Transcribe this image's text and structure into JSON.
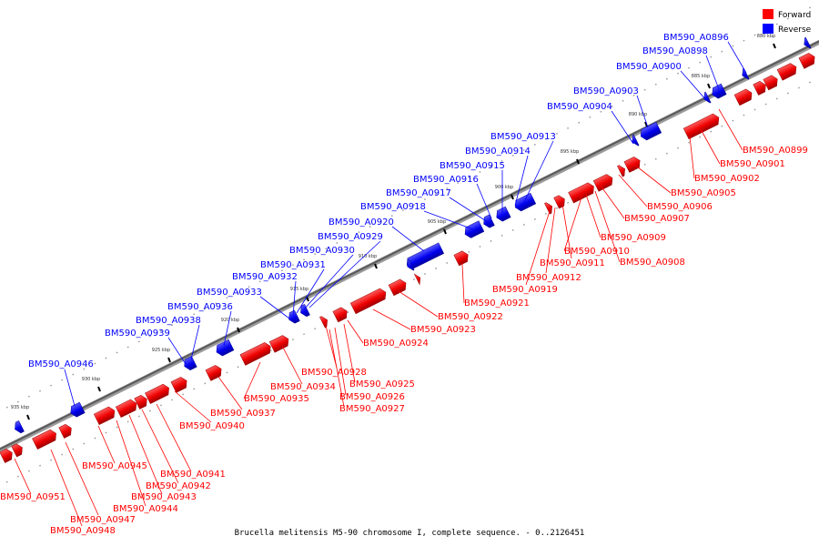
{
  "legend": {
    "forward_label": "Forward",
    "reverse_label": "Reverse",
    "forward_color": "#ff0000",
    "reverse_color": "#0000ff"
  },
  "caption": "Brucella melitensis M5-90 chromosome I, complete sequence. - 0..2126451",
  "ticks": [
    "880 kbp",
    "885 kbp",
    "890 kbp",
    "895 kbp",
    "900 kbp",
    "905 kbp",
    "910 kbp",
    "915 kbp",
    "920 kbp",
    "925 kbp",
    "930 kbp",
    "935 kbp"
  ],
  "reverse_genes": [
    "BM590_A0896",
    "BM590_A0898",
    "BM590_A0900",
    "BM590_A0903",
    "BM590_A0904",
    "BM590_A0913",
    "BM590_A0914",
    "BM590_A0915",
    "BM590_A0916",
    "BM590_A0917",
    "BM590_A0918",
    "BM590_A0920",
    "BM590_A0929",
    "BM590_A0930",
    "BM590_A0931",
    "BM590_A0932",
    "BM590_A0933",
    "BM590_A0936",
    "BM590_A0938",
    "BM590_A0939",
    "BM590_A0946"
  ],
  "forward_genes": [
    "BM590_A0899",
    "BM590_A0901",
    "BM590_A0902",
    "BM590_A0905",
    "BM590_A0906",
    "BM590_A0907",
    "BM590_A0909",
    "BM590_A0910",
    "BM590_A0908",
    "BM590_A0911",
    "BM590_A0912",
    "BM590_A0919",
    "BM590_A0921",
    "BM590_A0922",
    "BM590_A0923",
    "BM590_A0924",
    "BM590_A0925",
    "BM590_A0926",
    "BM590_A0927",
    "BM590_A0928",
    "BM590_A0934",
    "BM590_A0935",
    "BM590_A0937",
    "BM590_A0940",
    "BM590_A0941",
    "BM590_A0942",
    "BM590_A0943",
    "BM590_A0944",
    "BM590_A0945",
    "BM590_A0947",
    "BM590_A0948",
    "BM590_A0951"
  ]
}
